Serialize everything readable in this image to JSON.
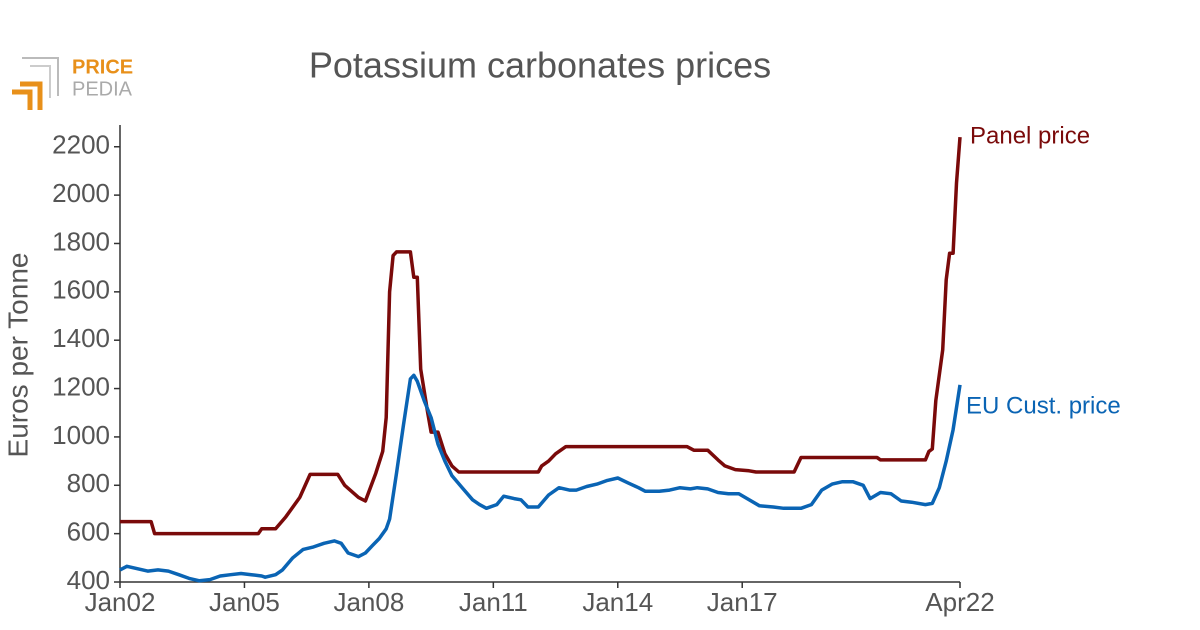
{
  "logo": [
    "PRICE",
    "PEDIA"
  ],
  "chart_data": {
    "type": "line",
    "title": "Potassium carbonates prices",
    "ylabel": "Euros per Tonne",
    "xlim": [
      "2002-01",
      "2022-04"
    ],
    "ylim": [
      400,
      2290
    ],
    "xticks": [
      {
        "value": "2002-01",
        "label": "Jan02"
      },
      {
        "value": "2005-01",
        "label": "Jan05"
      },
      {
        "value": "2008-01",
        "label": "Jan08"
      },
      {
        "value": "2011-01",
        "label": "Jan11"
      },
      {
        "value": "2014-01",
        "label": "Jan14"
      },
      {
        "value": "2017-01",
        "label": "Jan17"
      },
      {
        "value": "2022-04",
        "label": "Apr22"
      }
    ],
    "yticks": [
      400,
      600,
      800,
      1000,
      1200,
      1400,
      1600,
      1800,
      2000,
      2200
    ],
    "series": [
      {
        "name": "Panel price",
        "color": "#7a0a0a",
        "x": [
          "2002-01",
          "2002-10",
          "2002-11",
          "2005-05",
          "2005-06",
          "2005-10",
          "2006-01",
          "2006-05",
          "2006-08",
          "2007-04",
          "2007-06",
          "2007-10",
          "2007-12",
          "2008-03",
          "2008-05",
          "2008-06",
          "2008-07",
          "2008-08",
          "2008-09",
          "2009-01",
          "2009-02",
          "2009-03",
          "2009-04",
          "2009-06",
          "2009-07",
          "2009-09",
          "2009-11",
          "2010-01",
          "2010-03",
          "2012-02",
          "2012-03",
          "2012-05",
          "2012-07",
          "2012-10",
          "2015-09",
          "2015-11",
          "2016-03",
          "2016-06",
          "2016-08",
          "2016-11",
          "2017-03",
          "2017-05",
          "2018-04",
          "2018-06",
          "2020-04",
          "2020-05",
          "2021-06",
          "2021-07",
          "2021-08",
          "2021-09",
          "2021-11",
          "2021-12",
          "2022-01",
          "2022-02",
          "2022-03",
          "2022-04"
        ],
        "values": [
          650,
          650,
          600,
          600,
          620,
          620,
          670,
          750,
          845,
          845,
          800,
          750,
          735,
          850,
          940,
          1080,
          1600,
          1750,
          1765,
          1765,
          1660,
          1660,
          1280,
          1100,
          1020,
          1020,
          930,
          880,
          855,
          855,
          880,
          900,
          930,
          960,
          960,
          945,
          945,
          905,
          880,
          865,
          860,
          855,
          855,
          915,
          915,
          905,
          905,
          940,
          950,
          1150,
          1360,
          1650,
          1760,
          1760,
          2050,
          2240
        ]
      },
      {
        "name": "EU Cust. price",
        "color": "#0a64b4",
        "x": [
          "2002-01",
          "2002-03",
          "2002-06",
          "2002-09",
          "2002-12",
          "2003-03",
          "2003-06",
          "2003-09",
          "2003-12",
          "2004-03",
          "2004-06",
          "2004-09",
          "2004-12",
          "2005-03",
          "2005-06",
          "2005-07",
          "2005-10",
          "2005-12",
          "2006-03",
          "2006-06",
          "2006-09",
          "2006-12",
          "2007-03",
          "2007-05",
          "2007-07",
          "2007-10",
          "2007-12",
          "2008-02",
          "2008-04",
          "2008-06",
          "2008-07",
          "2008-09",
          "2008-11",
          "2009-01",
          "2009-02",
          "2009-03",
          "2009-05",
          "2009-07",
          "2009-09",
          "2009-11",
          "2010-01",
          "2010-04",
          "2010-07",
          "2010-09",
          "2010-11",
          "2011-02",
          "2011-04",
          "2011-07",
          "2011-09",
          "2011-11",
          "2012-02",
          "2012-05",
          "2012-08",
          "2012-11",
          "2013-01",
          "2013-04",
          "2013-07",
          "2013-10",
          "2014-01",
          "2014-04",
          "2014-07",
          "2014-09",
          "2015-01",
          "2015-04",
          "2015-07",
          "2015-10",
          "2015-12",
          "2016-03",
          "2016-06",
          "2016-09",
          "2016-12",
          "2017-03",
          "2017-06",
          "2017-10",
          "2018-01",
          "2018-06",
          "2018-09",
          "2018-12",
          "2019-03",
          "2019-06",
          "2019-09",
          "2019-12",
          "2020-02",
          "2020-05",
          "2020-08",
          "2020-11",
          "2021-02",
          "2021-06",
          "2021-08",
          "2021-10",
          "2021-12",
          "2022-02",
          "2022-04"
        ],
        "values": [
          450,
          465,
          455,
          445,
          450,
          445,
          430,
          415,
          405,
          410,
          425,
          430,
          435,
          430,
          425,
          420,
          430,
          450,
          500,
          535,
          545,
          560,
          570,
          560,
          520,
          505,
          520,
          550,
          580,
          620,
          660,
          850,
          1050,
          1240,
          1255,
          1230,
          1150,
          1080,
          970,
          900,
          840,
          790,
          740,
          720,
          705,
          720,
          755,
          745,
          740,
          710,
          710,
          760,
          790,
          780,
          780,
          795,
          805,
          820,
          830,
          810,
          790,
          775,
          775,
          780,
          790,
          785,
          790,
          785,
          770,
          765,
          765,
          740,
          715,
          710,
          705,
          705,
          720,
          780,
          805,
          815,
          815,
          800,
          745,
          770,
          765,
          735,
          730,
          720,
          725,
          790,
          900,
          1030,
          1215
        ]
      }
    ]
  }
}
